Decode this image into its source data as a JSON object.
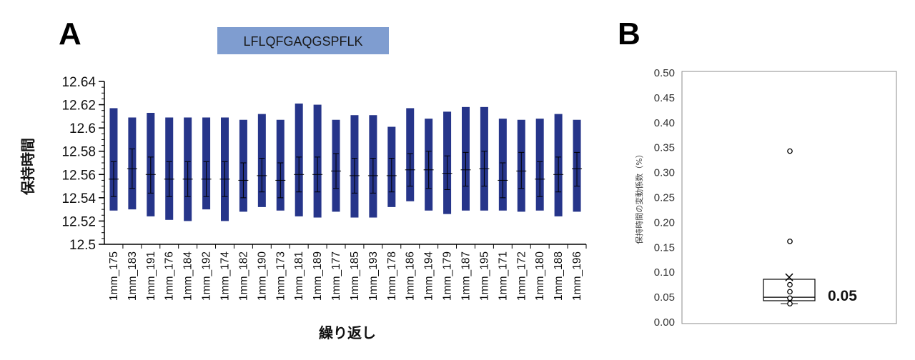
{
  "panels": {
    "a_letter": "A",
    "b_letter": "B"
  },
  "peptide_label": "LFLQFGAQGSPFLK",
  "colors": {
    "bar": "#26358a",
    "peptide_box": "#7f9dd0",
    "axis": "#000000"
  },
  "chart_data": [
    {
      "type": "bar",
      "ylabel": "保持時間",
      "xlabel": "繰り返し",
      "ylim": [
        12.5,
        12.64
      ],
      "yticks": [
        "12.5",
        "12.52",
        "12.54",
        "12.56",
        "12.58",
        "12.6",
        "12.62",
        "12.64"
      ],
      "categories": [
        "1mm_175",
        "1mm_183",
        "1mm_191",
        "1mm_176",
        "1mm_184",
        "1mm_192",
        "1mm_174",
        "1mm_182",
        "1mm_190",
        "1mm_173",
        "1mm_181",
        "1mm_189",
        "1mm_177",
        "1mm_185",
        "1mm_193",
        "1mm_178",
        "1mm_186",
        "1mm_194",
        "1mm_179",
        "1mm_187",
        "1mm_195",
        "1mm_171",
        "1mm_172",
        "1mm_180",
        "1mm_188",
        "1mm_196"
      ],
      "bar_top": [
        12.617,
        12.609,
        12.613,
        12.609,
        12.609,
        12.609,
        12.609,
        12.607,
        12.612,
        12.607,
        12.621,
        12.62,
        12.607,
        12.611,
        12.611,
        12.601,
        12.617,
        12.608,
        12.614,
        12.618,
        12.618,
        12.608,
        12.607,
        12.608,
        12.612,
        12.607
      ],
      "bar_bottom": [
        12.529,
        12.53,
        12.524,
        12.521,
        12.52,
        12.53,
        12.52,
        12.528,
        12.532,
        12.529,
        12.524,
        12.523,
        12.528,
        12.523,
        12.523,
        12.532,
        12.537,
        12.529,
        12.526,
        12.529,
        12.529,
        12.529,
        12.528,
        12.529,
        12.524,
        12.528
      ],
      "mean": [
        12.556,
        12.565,
        12.56,
        12.556,
        12.556,
        12.556,
        12.556,
        12.555,
        12.559,
        12.555,
        12.56,
        12.56,
        12.563,
        12.559,
        12.559,
        12.559,
        12.564,
        12.564,
        12.561,
        12.564,
        12.565,
        12.555,
        12.563,
        12.556,
        12.56,
        12.565
      ],
      "err_low": [
        12.541,
        12.548,
        12.544,
        12.541,
        12.541,
        12.541,
        12.541,
        12.54,
        12.545,
        12.54,
        12.545,
        12.545,
        12.548,
        12.544,
        12.544,
        12.545,
        12.55,
        12.548,
        12.547,
        12.55,
        12.55,
        12.54,
        12.548,
        12.541,
        12.545,
        12.55
      ],
      "err_high": [
        12.571,
        12.582,
        12.575,
        12.571,
        12.571,
        12.571,
        12.571,
        12.57,
        12.574,
        12.57,
        12.575,
        12.575,
        12.578,
        12.574,
        12.574,
        12.574,
        12.578,
        12.58,
        12.576,
        12.579,
        12.58,
        12.57,
        12.579,
        12.571,
        12.575,
        12.579
      ]
    },
    {
      "type": "box",
      "ylabel": "保持時間の変動係数（%）",
      "ylim": [
        0.0,
        0.5
      ],
      "yticks": [
        "0.00",
        "0.05",
        "0.10",
        "0.15",
        "0.20",
        "0.25",
        "0.30",
        "0.35",
        "0.40",
        "0.45",
        "0.50"
      ],
      "box": {
        "whisker_low": 0.037,
        "q1": 0.043,
        "median": 0.05,
        "q3": 0.086,
        "whisker_high": 0.086,
        "mean": 0.09
      },
      "points": [
        0.343,
        0.162,
        0.075,
        0.061,
        0.048,
        0.037
      ],
      "median_label": "0.05"
    }
  ]
}
